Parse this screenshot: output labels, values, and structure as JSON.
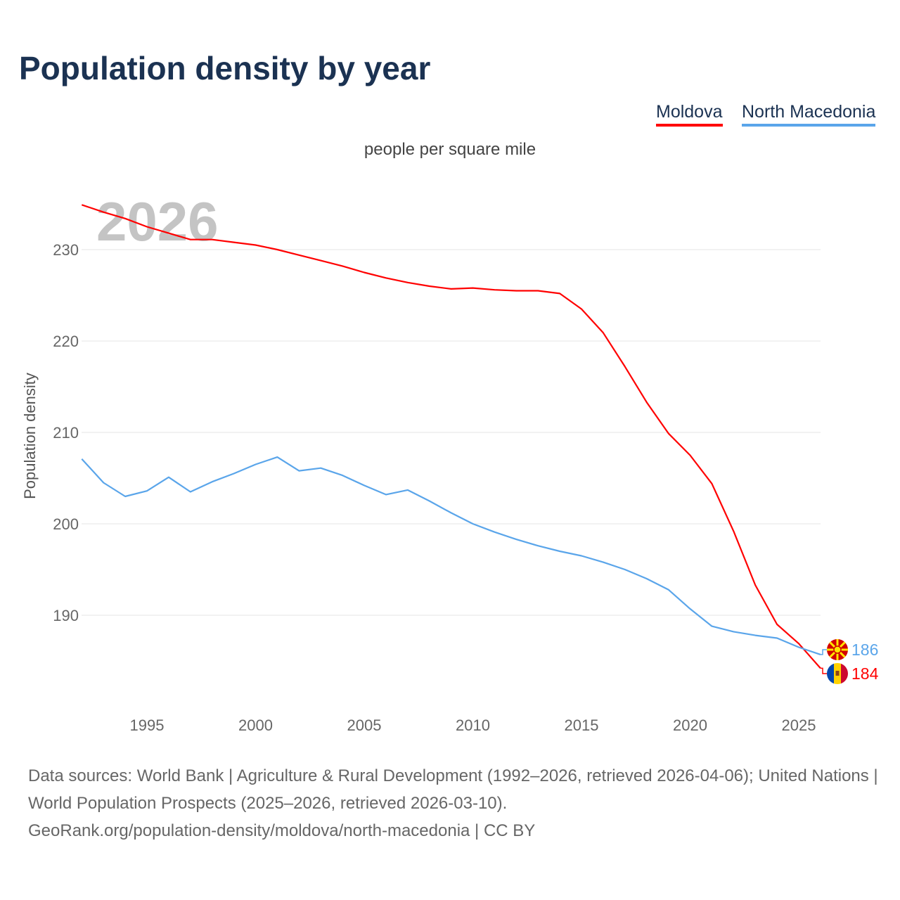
{
  "title": "Population density by year",
  "subtitle": "people per square mile",
  "legend": [
    {
      "name": "Moldova",
      "color": "#ff0000"
    },
    {
      "name": "North Macedonia",
      "color": "#5aa5ea"
    }
  ],
  "footer": {
    "line1": "Data sources: World Bank | Agriculture & Rural Development (1992–2026, retrieved 2026-04-06); United Nations | World Population Prospects (2025–2026, retrieved 2026-03-10).",
    "line2": "GeoRank.org/population-density/moldova/north-macedonia | CC BY"
  },
  "chart_data": {
    "type": "line",
    "title": "Population density by year",
    "ylabel": "Population density",
    "xlabel": "",
    "year_watermark": "2026",
    "xlim": [
      1992,
      2026
    ],
    "ylim": [
      180.5,
      238
    ],
    "xticks": [
      1995,
      2000,
      2005,
      2010,
      2015,
      2020,
      2025
    ],
    "yticks": [
      190,
      200,
      210,
      220,
      230
    ],
    "grid": true,
    "legend_position": "top-right",
    "x": [
      1992,
      1993,
      1994,
      1995,
      1996,
      1997,
      1998,
      1999,
      2000,
      2001,
      2002,
      2003,
      2004,
      2005,
      2006,
      2007,
      2008,
      2009,
      2010,
      2011,
      2012,
      2013,
      2014,
      2015,
      2016,
      2017,
      2018,
      2019,
      2020,
      2021,
      2022,
      2023,
      2024,
      2025,
      2026
    ],
    "series": [
      {
        "name": "Moldova",
        "color": "#ff0000",
        "end_label": "184",
        "values": [
          234.9,
          234.1,
          233.4,
          232.5,
          231.8,
          231.1,
          231.1,
          230.8,
          230.5,
          230.0,
          229.4,
          228.8,
          228.2,
          227.5,
          226.9,
          226.4,
          226.0,
          225.7,
          225.8,
          225.6,
          225.5,
          225.5,
          225.2,
          223.5,
          220.9,
          217.2,
          213.3,
          209.9,
          207.5,
          204.4,
          199.2,
          193.3,
          189.0,
          186.9,
          184.2
        ]
      },
      {
        "name": "North Macedonia",
        "color": "#5aa5ea",
        "end_label": "186",
        "values": [
          207.1,
          204.5,
          203.0,
          203.6,
          205.1,
          203.5,
          204.6,
          205.5,
          206.5,
          207.3,
          205.8,
          206.1,
          205.3,
          204.2,
          203.2,
          203.7,
          202.5,
          201.2,
          200.0,
          199.1,
          198.3,
          197.6,
          197.0,
          196.5,
          195.8,
          195.0,
          194.0,
          192.8,
          190.7,
          188.8,
          188.2,
          187.8,
          187.5,
          186.5,
          185.7
        ]
      }
    ]
  }
}
